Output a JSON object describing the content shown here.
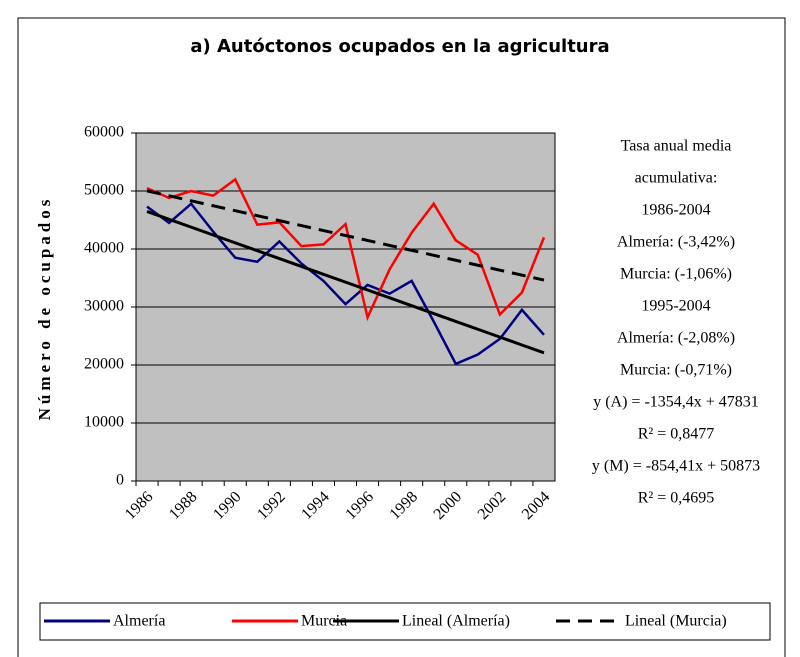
{
  "chart_data": {
    "type": "line",
    "title": "a) Autóctonos ocupados en la agricultura",
    "y_label": "Número de ocupados",
    "categories": [
      1986,
      null,
      1988,
      null,
      1990,
      null,
      1992,
      null,
      1994,
      null,
      1996,
      null,
      1998,
      null,
      2000,
      null,
      2002,
      null,
      2004
    ],
    "ylim": [
      0,
      60000
    ],
    "yticks": [
      0,
      10000,
      20000,
      30000,
      40000,
      50000,
      60000
    ],
    "grid": true,
    "plot_background": "#c0c0c0",
    "series": [
      {
        "name": "Almería",
        "color": "#000080",
        "dash": false,
        "values": [
          47300,
          44500,
          47800,
          43000,
          38500,
          37800,
          41300,
          37500,
          34500,
          30500,
          33800,
          32300,
          34500,
          27500,
          20200,
          21800,
          24500,
          29500,
          25200
        ]
      },
      {
        "name": "Murcia",
        "color": "#ff0000",
        "dash": false,
        "values": [
          50500,
          48800,
          50000,
          49200,
          52000,
          44200,
          44600,
          40500,
          40800,
          44300,
          28200,
          36500,
          42800,
          47800,
          41500,
          39000,
          28700,
          32500,
          42000
        ]
      },
      {
        "name": "Lineal (Almería)",
        "color": "#000000",
        "dash": false,
        "values": [
          46477,
          45122,
          43768,
          42413,
          41059,
          39705,
          38350,
          36996,
          35641,
          34287,
          32933,
          31578,
          30224,
          28869,
          27515,
          26161,
          24806,
          23452,
          22097
        ]
      },
      {
        "name": "Lineal (Murcia)",
        "color": "#000000",
        "dash": true,
        "values": [
          50019,
          49164,
          48310,
          47455,
          46601,
          45747,
          44892,
          44038,
          43183,
          42329,
          41474,
          40620,
          39766,
          38911,
          38057,
          37202,
          36348,
          35494,
          34639
        ]
      }
    ],
    "annotations": [
      "Tasa anual media",
      "acumulativa:",
      "1986-2004",
      "Almería: (-3,42%)",
      "Murcia: (-1,06%)",
      "1995-2004",
      "Almería: (-2,08%)",
      "Murcia: (-0,71%)",
      "y (A) = -1354,4x + 47831",
      "R² = 0,8477",
      "y (M) = -854,41x + 50873",
      "R² = 0,4695"
    ]
  }
}
